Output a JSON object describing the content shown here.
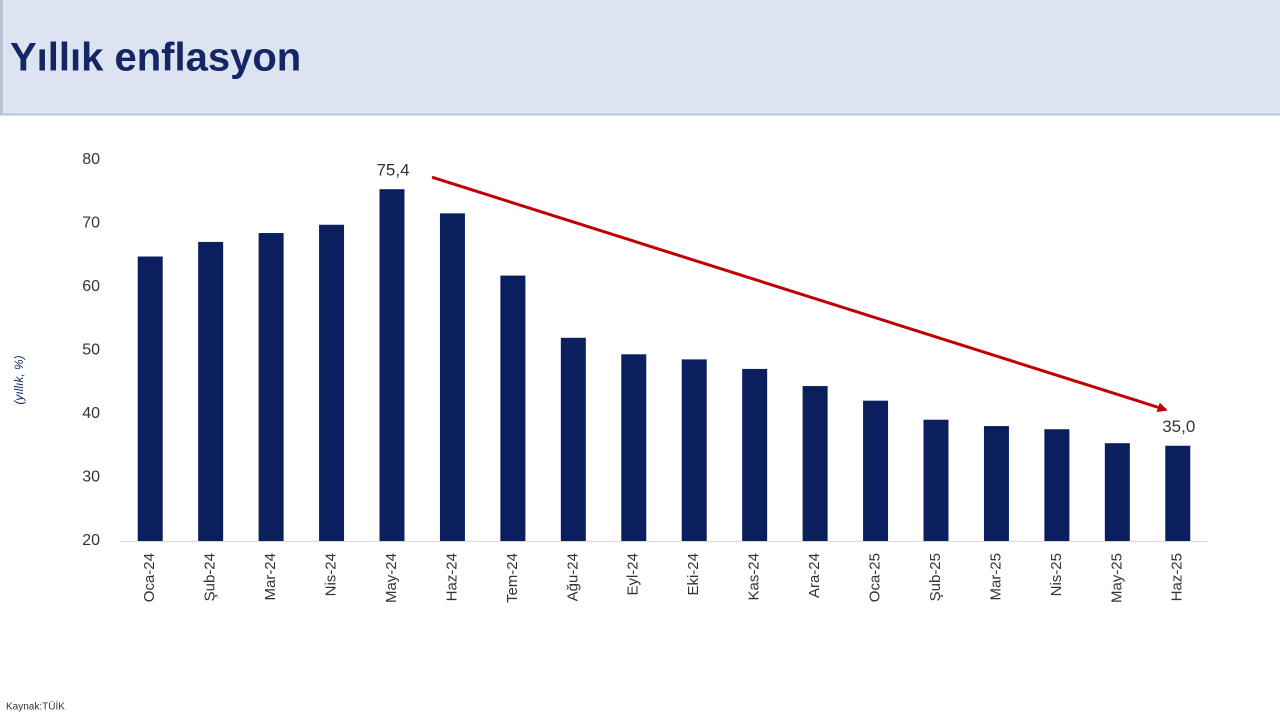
{
  "chart_data": {
    "type": "bar",
    "title": "Yıllık enflasyon",
    "y_label": "(yıllık, %)",
    "source": "Kaynak:TÜİK",
    "categories": [
      "Oca-24",
      "Şub-24",
      "Mar-24",
      "Nis-24",
      "May-24",
      "Haz-24",
      "Tem-24",
      "Ağu-24",
      "Eyl-24",
      "Eki-24",
      "Kas-24",
      "Ara-24",
      "Oca-25",
      "Şub-25",
      "Mar-25",
      "Nis-25",
      "May-25",
      "Haz-25"
    ],
    "values": [
      64.8,
      67.1,
      68.5,
      69.8,
      75.4,
      71.6,
      61.8,
      52.0,
      49.4,
      48.6,
      47.1,
      44.4,
      42.1,
      39.1,
      38.1,
      37.6,
      35.4,
      35.0
    ],
    "value_labels": [
      null,
      null,
      null,
      null,
      "75,4",
      null,
      null,
      null,
      null,
      null,
      null,
      null,
      null,
      null,
      null,
      null,
      null,
      "35,0"
    ],
    "color": "#0b1f5e",
    "ylim": [
      20,
      80
    ],
    "yticks": [
      20,
      30,
      40,
      50,
      60,
      70,
      80
    ],
    "grid": false
  }
}
